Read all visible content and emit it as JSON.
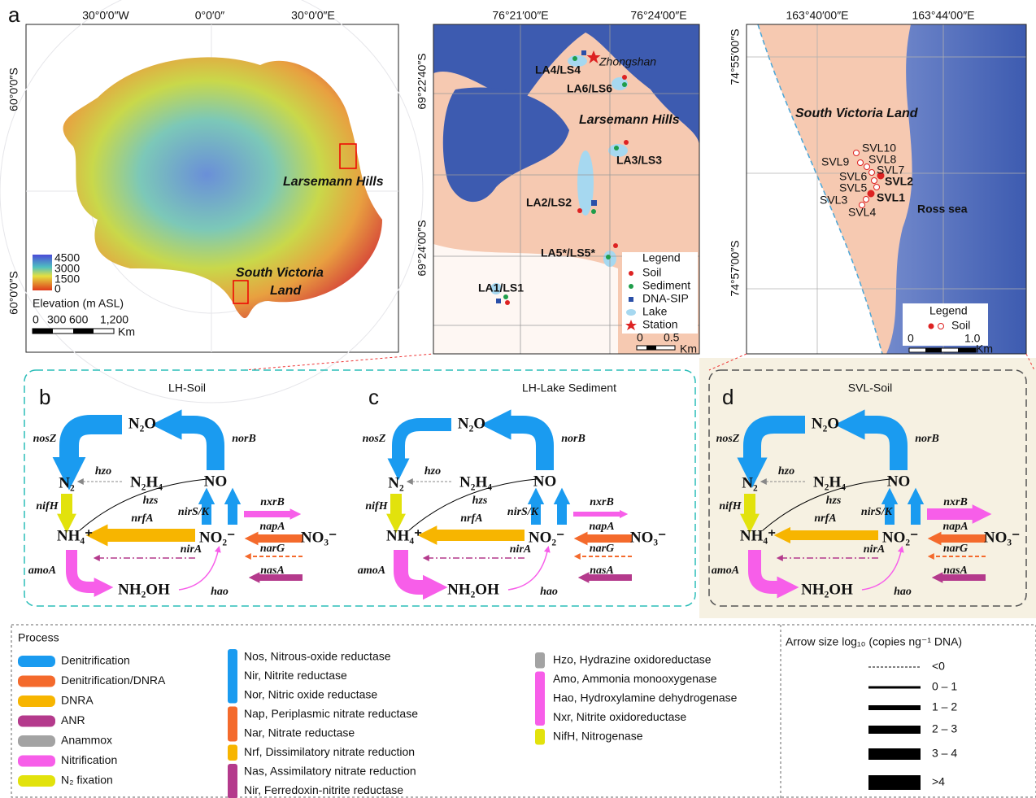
{
  "map_a": {
    "label": "a",
    "lon_labels": [
      "30°0′0″W",
      "0°0′0″",
      "30°0′0″E"
    ],
    "lat_labels": [
      "60°0′0″S",
      "60°0′0″S"
    ],
    "places": {
      "larsemann": "Larsemann Hills",
      "svl": [
        "South Victoria",
        "Land"
      ]
    },
    "elevation_legend": {
      "ticks": [
        "4500",
        "3000",
        "1500",
        "0"
      ],
      "title": "Elevation (m ASL)"
    },
    "scale": {
      "ticks": [
        "0",
        "300",
        "600",
        "1,200"
      ],
      "unit": "Km"
    }
  },
  "map_b": {
    "lon_labels": [
      "76°21′00″E",
      "76°24′00″E"
    ],
    "lat_labels": [
      "69°22′40″S",
      "69°24′00″S"
    ],
    "sites": [
      "LA4/LS4",
      "LA6/LS6",
      "LA3/LS3",
      "LA2/LS2",
      "LA5*/LS5*",
      "LA1/LS1"
    ],
    "station": "Zhongshan",
    "place": "Larsemann Hills",
    "legend": {
      "title": "Legend",
      "items": [
        "Soil",
        "Sediment",
        "DNA-SIP",
        "Lake",
        "Station"
      ]
    },
    "scale": {
      "ticks": [
        "0",
        "0.5"
      ],
      "unit": "Km"
    }
  },
  "map_c": {
    "lon_labels": [
      "163°40′00″E",
      "163°44′00″E"
    ],
    "lat_labels": [
      "74°55′00″S",
      "74°57′00″S"
    ],
    "place": "South Victoria Land",
    "sea": "Ross sea",
    "sites": [
      "SVL10",
      "SVL9",
      "SVL8",
      "SVL7",
      "SVL6",
      "SVL2",
      "SVL5",
      "SVL1",
      "SVL3",
      "SVL4"
    ],
    "legend": {
      "title": "Legend",
      "items": [
        "Soil"
      ]
    },
    "scale": {
      "ticks": [
        "0",
        "1.0"
      ],
      "unit": "Km"
    }
  },
  "pathways": {
    "panels": [
      {
        "label": "b",
        "title": "LH-Soil"
      },
      {
        "label": "c",
        "title": "LH-Lake Sediment"
      },
      {
        "label": "d",
        "title": "SVL-Soil"
      }
    ],
    "compounds": {
      "n2o": "N₂O",
      "n2": "N₂",
      "n2h4": "N₂H₄",
      "no": "NO",
      "nh4": "NH₄⁺",
      "no2": "NO₂⁻",
      "no3": "NO₃⁻",
      "nh2oh": "NH₂OH"
    },
    "genes": {
      "nos": "nosZ",
      "nor": "norB",
      "hzo": "hzo",
      "hzs": "hzs",
      "nif": "nifH",
      "nrf": "nrfA",
      "nir": "nirS/K",
      "nxr": "nxrB",
      "nap": "napA",
      "nar": "narG",
      "nas": "nasA",
      "nira": "nirA",
      "amo": "amoA",
      "hao": "hao"
    }
  },
  "legend": {
    "process_title": "Process",
    "processes": [
      {
        "name": "Denitrification",
        "color": "#1a9bf0"
      },
      {
        "name": "Denitrification/DNRA",
        "color": "#f46a2c"
      },
      {
        "name": "DNRA",
        "color": "#f7b500"
      },
      {
        "name": "ANR",
        "color": "#b43a8c"
      },
      {
        "name": "Anammox",
        "color": "#a3a3a3"
      },
      {
        "name": "Nitrification",
        "color": "#f75ee9"
      },
      {
        "name": "N₂ fixation",
        "color": "#e2e20c"
      }
    ],
    "enzymes": [
      {
        "color": "#1a9bf0",
        "items": [
          "Nos, Nitrous-oxide reductase",
          "Nir, Nitrite reductase",
          "Nor, Nitric oxide reductase"
        ]
      },
      {
        "color": "#f46a2c",
        "items": [
          "Nap, Periplasmic nitrate reductase",
          "Nar, Nitrate reductase"
        ]
      },
      {
        "color": "#f7b500",
        "items": [
          "Nrf, Dissimilatory nitrate reduction"
        ]
      },
      {
        "color": "#b43a8c",
        "items": [
          "Nas, Assimilatory nitrate reduction",
          "Nir, Ferredoxin-nitrite reductase"
        ]
      }
    ],
    "enzymes2": [
      {
        "color": "#a3a3a3",
        "items": [
          "Hzo, Hydrazine oxidoreductase"
        ]
      },
      {
        "color": "#f75ee9",
        "items": [
          "Amo, Ammonia monooxygenase",
          "Hao, Hydroxylamine dehydrogenase",
          "Nxr, Nitrite oxidoreductase"
        ]
      },
      {
        "color": "#e2e20c",
        "items": [
          "NifH, Nitrogenase"
        ]
      }
    ],
    "arrow_size": {
      "title": "Arrow size log₁₀ (copies ng⁻¹ DNA)",
      "classes": [
        "<0",
        "0 – 1",
        "1 – 2",
        "2 – 3",
        "3 – 4",
        ">4"
      ]
    }
  }
}
